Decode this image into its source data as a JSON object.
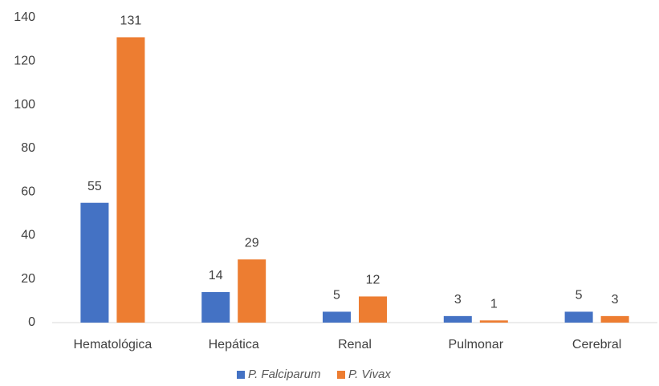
{
  "chart_data": {
    "type": "bar",
    "categories": [
      "Hematológica",
      "Hepática",
      "Renal",
      "Pulmonar",
      "Cerebral"
    ],
    "series": [
      {
        "name": "P. Falciparum",
        "color": "#4472c4",
        "values": [
          55,
          14,
          5,
          3,
          5
        ]
      },
      {
        "name": "P. Vivax",
        "color": "#ed7d31",
        "values": [
          131,
          29,
          12,
          1,
          3
        ]
      }
    ],
    "ylim": [
      0,
      140
    ],
    "yticks": [
      0,
      20,
      40,
      60,
      80,
      100,
      120,
      140
    ],
    "grid": false,
    "legend": "bottom"
  }
}
